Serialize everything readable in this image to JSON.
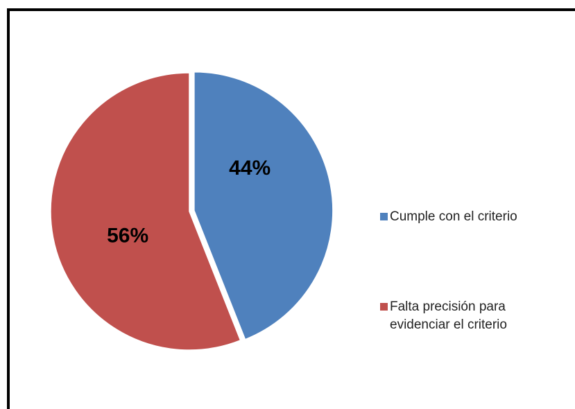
{
  "chart_data": {
    "type": "pie",
    "categories": [
      "Cumple con el criterio",
      "Falta precisión para evidenciar el criterio"
    ],
    "values": [
      44,
      56
    ],
    "value_labels": [
      "44%",
      "56%"
    ],
    "colors": [
      "#4f81bd",
      "#c0504d"
    ],
    "legend": "right"
  }
}
